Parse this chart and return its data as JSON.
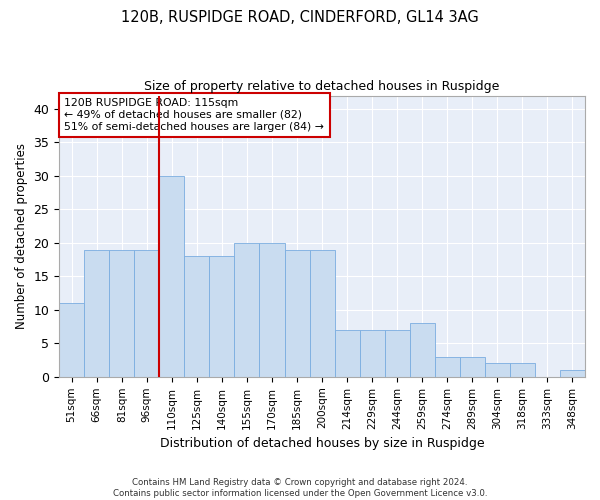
{
  "title": "120B, RUSPIDGE ROAD, CINDERFORD, GL14 3AG",
  "subtitle": "Size of property relative to detached houses in Ruspidge",
  "xlabel": "Distribution of detached houses by size in Ruspidge",
  "ylabel": "Number of detached properties",
  "bar_color": "#c9dcf0",
  "bar_edgecolor": "#7aade0",
  "background_color": "#e8eef8",
  "grid_color": "#ffffff",
  "vline_color": "#cc0000",
  "annotation_text": "120B RUSPIDGE ROAD: 115sqm\n← 49% of detached houses are smaller (82)\n51% of semi-detached houses are larger (84) →",
  "annotation_box_color": "#ffffff",
  "annotation_box_edgecolor": "#cc0000",
  "bins": [
    "51sqm",
    "66sqm",
    "81sqm",
    "96sqm",
    "110sqm",
    "125sqm",
    "140sqm",
    "155sqm",
    "170sqm",
    "185sqm",
    "200sqm",
    "214sqm",
    "229sqm",
    "244sqm",
    "259sqm",
    "274sqm",
    "289sqm",
    "304sqm",
    "318sqm",
    "333sqm",
    "348sqm"
  ],
  "values": [
    11,
    19,
    19,
    19,
    30,
    18,
    18,
    20,
    20,
    19,
    19,
    7,
    7,
    7,
    8,
    3,
    3,
    2,
    2,
    0,
    1
  ],
  "vline_bin_index": 4,
  "ylim": [
    0,
    42
  ],
  "yticks": [
    0,
    5,
    10,
    15,
    20,
    25,
    30,
    35,
    40
  ],
  "footer_text": "Contains HM Land Registry data © Crown copyright and database right 2024.\nContains public sector information licensed under the Open Government Licence v3.0.",
  "fig_width": 6.0,
  "fig_height": 5.0,
  "dpi": 100
}
